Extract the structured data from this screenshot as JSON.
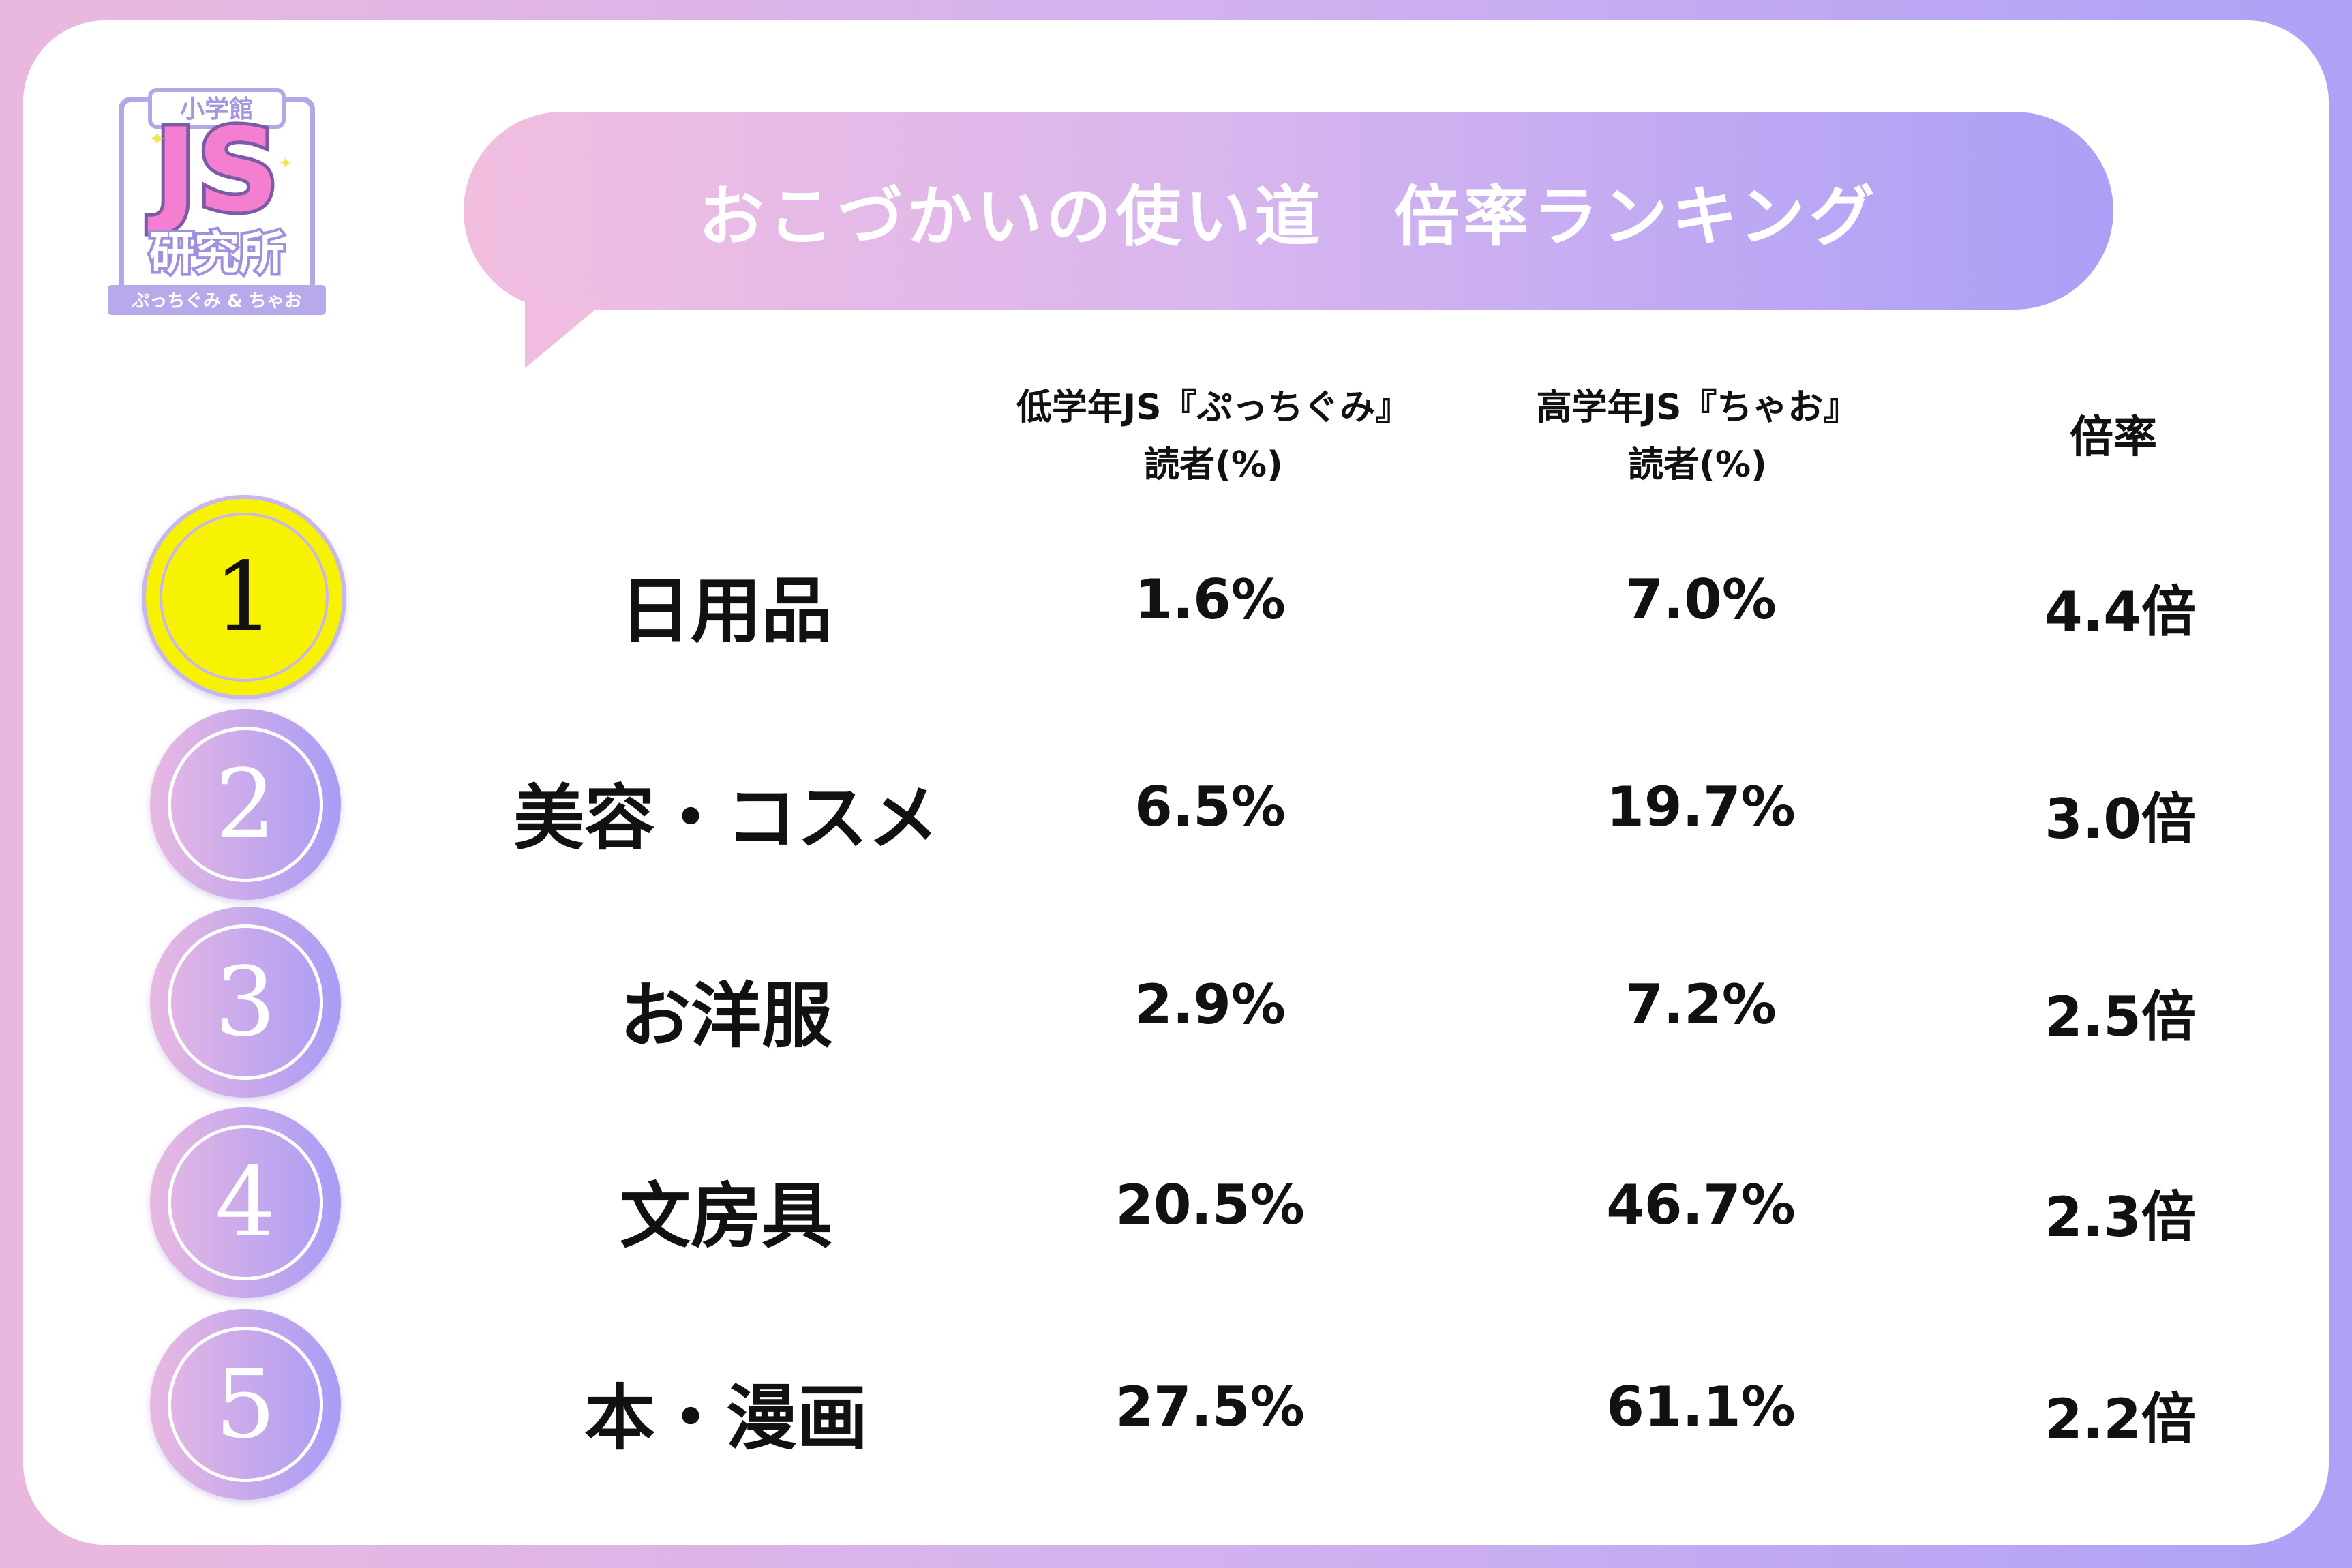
{
  "logo": {
    "top_text": "小学館",
    "main_text": "JS",
    "sub_text": "研究所",
    "tagline": "ぷっちぐみ & ちゃお"
  },
  "title": "おこづかいの使い道　倍率ランキング",
  "chart_data": {
    "type": "table",
    "title": "おこづかいの使い道　倍率ランキング",
    "columns": [
      {
        "line1": "低学年JS『ぷっちぐみ』",
        "line2": "読者(%)"
      },
      {
        "line1": "高学年JS『ちゃお』",
        "line2": "読者(%)"
      },
      {
        "line1": "倍率",
        "line2": ""
      }
    ],
    "rows": [
      {
        "rank": "1",
        "category": "日用品",
        "low": "1.6%",
        "high": "7.0%",
        "ratio": "4.4倍"
      },
      {
        "rank": "2",
        "category": "美容・コスメ",
        "low": "6.5%",
        "high": "19.7%",
        "ratio": "3.0倍"
      },
      {
        "rank": "3",
        "category": "お洋服",
        "low": "2.9%",
        "high": "7.2%",
        "ratio": "2.5倍"
      },
      {
        "rank": "4",
        "category": "文房具",
        "low": "20.5%",
        "high": "46.7%",
        "ratio": "2.3倍"
      },
      {
        "rank": "5",
        "category": "本・漫画",
        "low": "27.5%",
        "high": "61.1%",
        "ratio": "2.2倍"
      }
    ],
    "values_low": [
      1.6,
      6.5,
      2.9,
      20.5,
      27.5
    ],
    "values_high": [
      7.0,
      19.7,
      7.2,
      46.7,
      61.1
    ],
    "values_ratio": [
      4.4,
      3.0,
      2.5,
      2.3,
      2.2
    ]
  },
  "colors": {
    "gradient_start": "#eab8de",
    "gradient_end": "#aea1f6",
    "first_place": "#f7f300"
  }
}
